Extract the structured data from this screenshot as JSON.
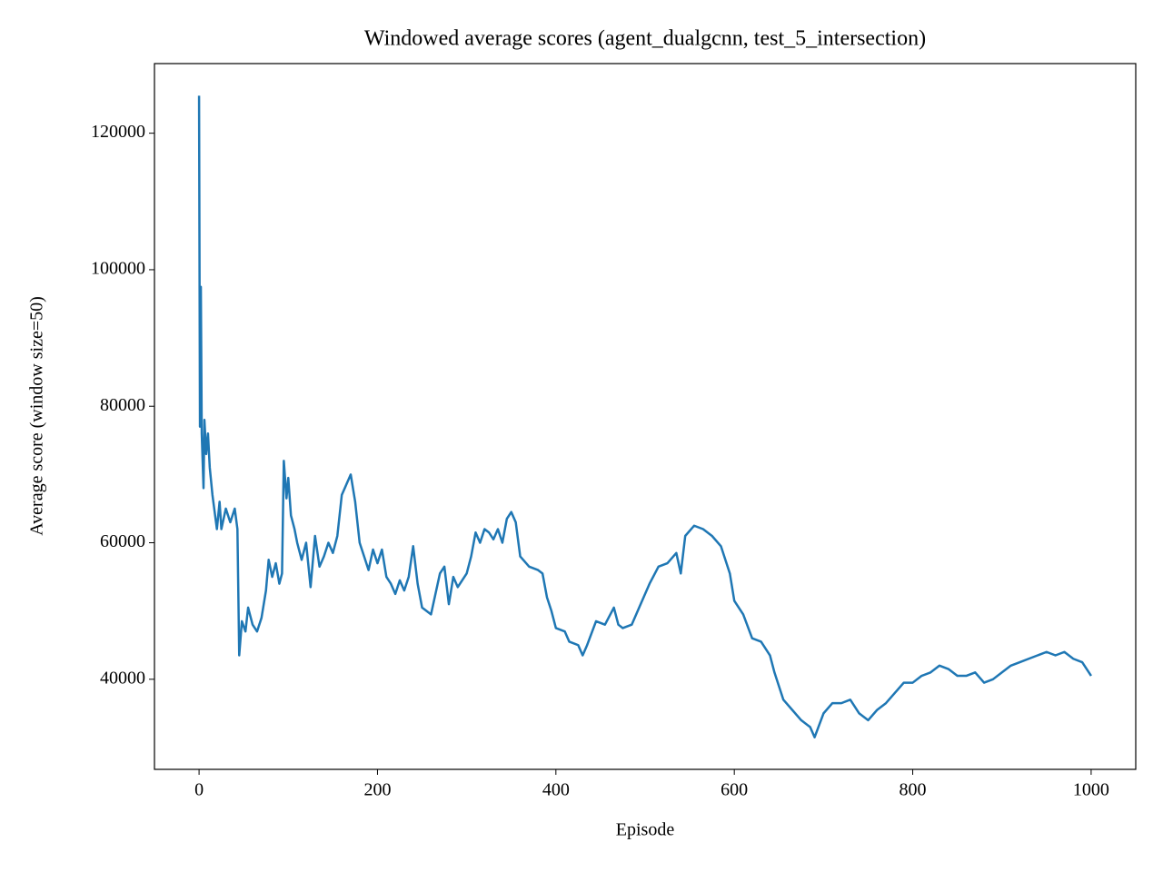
{
  "chart_data": {
    "type": "line",
    "title": "Windowed average scores (agent_dualgcnn, test_5_intersection)",
    "x_label": "Episode",
    "y_label": "Average score (window size=50)",
    "xlim": [
      -50,
      1050
    ],
    "ylim": [
      26800,
      130200
    ],
    "xticks": [
      0,
      200,
      400,
      600,
      800,
      1000
    ],
    "yticks": [
      40000,
      60000,
      80000,
      100000,
      120000
    ],
    "grid": false,
    "x": [
      0,
      1,
      2,
      3,
      5,
      6,
      8,
      10,
      12,
      15,
      20,
      23,
      25,
      30,
      35,
      40,
      43,
      45,
      48,
      52,
      55,
      60,
      65,
      70,
      75,
      78,
      82,
      86,
      90,
      93,
      95,
      98,
      100,
      103,
      107,
      110,
      115,
      120,
      125,
      130,
      135,
      140,
      145,
      150,
      155,
      160,
      165,
      170,
      175,
      180,
      185,
      190,
      195,
      200,
      205,
      210,
      215,
      220,
      225,
      230,
      235,
      240,
      245,
      250,
      260,
      270,
      275,
      280,
      285,
      290,
      300,
      305,
      310,
      315,
      320,
      325,
      330,
      335,
      340,
      345,
      350,
      355,
      360,
      370,
      380,
      385,
      390,
      395,
      400,
      410,
      415,
      425,
      430,
      435,
      445,
      455,
      465,
      470,
      475,
      485,
      495,
      505,
      515,
      525,
      535,
      540,
      545,
      555,
      565,
      575,
      585,
      595,
      600,
      610,
      620,
      630,
      640,
      645,
      655,
      665,
      675,
      685,
      690,
      700,
      710,
      720,
      730,
      740,
      750,
      760,
      770,
      780,
      790,
      800,
      810,
      820,
      830,
      840,
      850,
      860,
      870,
      880,
      890,
      900,
      910,
      920,
      930,
      940,
      950,
      960,
      970,
      980,
      990,
      995,
      1000
    ],
    "series": [
      {
        "name": "score",
        "color": "#1f77b4",
        "values": [
          125500,
          77000,
          97500,
          76000,
          68000,
          78000,
          73000,
          76000,
          71000,
          67000,
          62000,
          66000,
          62000,
          65000,
          63000,
          65000,
          62000,
          43500,
          48500,
          47000,
          50500,
          48000,
          47000,
          49000,
          53000,
          57500,
          55000,
          57000,
          54000,
          55500,
          72000,
          66500,
          69500,
          64000,
          62000,
          60000,
          57500,
          60000,
          53500,
          61000,
          56500,
          58000,
          60000,
          58500,
          61000,
          67000,
          68500,
          70000,
          66000,
          60000,
          58000,
          56000,
          59000,
          57000,
          59000,
          55000,
          54000,
          52500,
          54500,
          53000,
          55000,
          59500,
          54000,
          50500,
          49500,
          55500,
          56500,
          51000,
          55000,
          53500,
          55500,
          58000,
          61500,
          60000,
          62000,
          61500,
          60500,
          62000,
          60000,
          63500,
          64500,
          63000,
          58000,
          56500,
          56000,
          55500,
          52000,
          50000,
          47500,
          47000,
          45500,
          45000,
          43500,
          45000,
          48500,
          48000,
          50500,
          48000,
          47500,
          48000,
          51000,
          54000,
          56500,
          57000,
          58500,
          55500,
          61000,
          62500,
          62000,
          61000,
          59500,
          55500,
          51500,
          49500,
          46000,
          45500,
          43500,
          41000,
          37000,
          35500,
          34000,
          33000,
          31500,
          35000,
          36500,
          36500,
          37000,
          35000,
          34000,
          35500,
          36500,
          38000,
          39500,
          39500,
          40500,
          41000,
          42000,
          41500,
          40500,
          40500,
          41000,
          39500,
          40000,
          41000,
          42000,
          42500,
          43000,
          43500,
          44000,
          43500,
          44000,
          43000,
          42500,
          41500,
          40500
        ]
      }
    ]
  }
}
